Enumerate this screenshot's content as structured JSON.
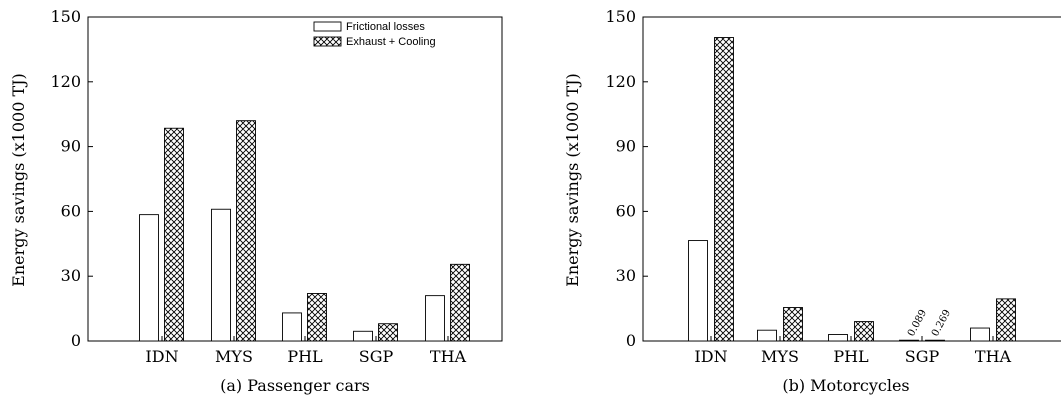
{
  "chart_data": [
    {
      "type": "bar",
      "caption": "(a) Passenger cars",
      "ylabel": "Energy savings (x1000 TJ)",
      "xlabel": "",
      "ylim": [
        0,
        150
      ],
      "yticks": [
        "0",
        "30",
        "60",
        "90",
        "120",
        "150"
      ],
      "categories": [
        "IDN",
        "MYS",
        "PHL",
        "SGP",
        "THA"
      ],
      "series": [
        {
          "name": "Frictional losses",
          "pattern": "empty",
          "values": [
            58.5,
            61,
            13,
            4.5,
            21
          ]
        },
        {
          "name": "Exhaust + Cooling",
          "pattern": "crosshatch",
          "values": [
            98.5,
            102,
            22,
            8,
            35.5
          ]
        }
      ],
      "legend": "top-right",
      "grid": false
    },
    {
      "type": "bar",
      "caption": "(b) Motorcycles",
      "ylabel": "Energy savings (x1000 TJ)",
      "xlabel": "",
      "ylim": [
        0,
        150
      ],
      "yticks": [
        "0",
        "30",
        "60",
        "90",
        "120",
        "150"
      ],
      "categories": [
        "IDN",
        "MYS",
        "PHL",
        "SGP",
        "THA"
      ],
      "series": [
        {
          "pattern": "empty",
          "values": [
            46.5,
            5,
            3,
            0.089,
            6
          ]
        },
        {
          "pattern": "crosshatch",
          "values": [
            140.5,
            15.5,
            9,
            0.269,
            19.5
          ]
        }
      ],
      "annotations": [
        "0.089",
        "0.269"
      ],
      "grid": false
    }
  ]
}
